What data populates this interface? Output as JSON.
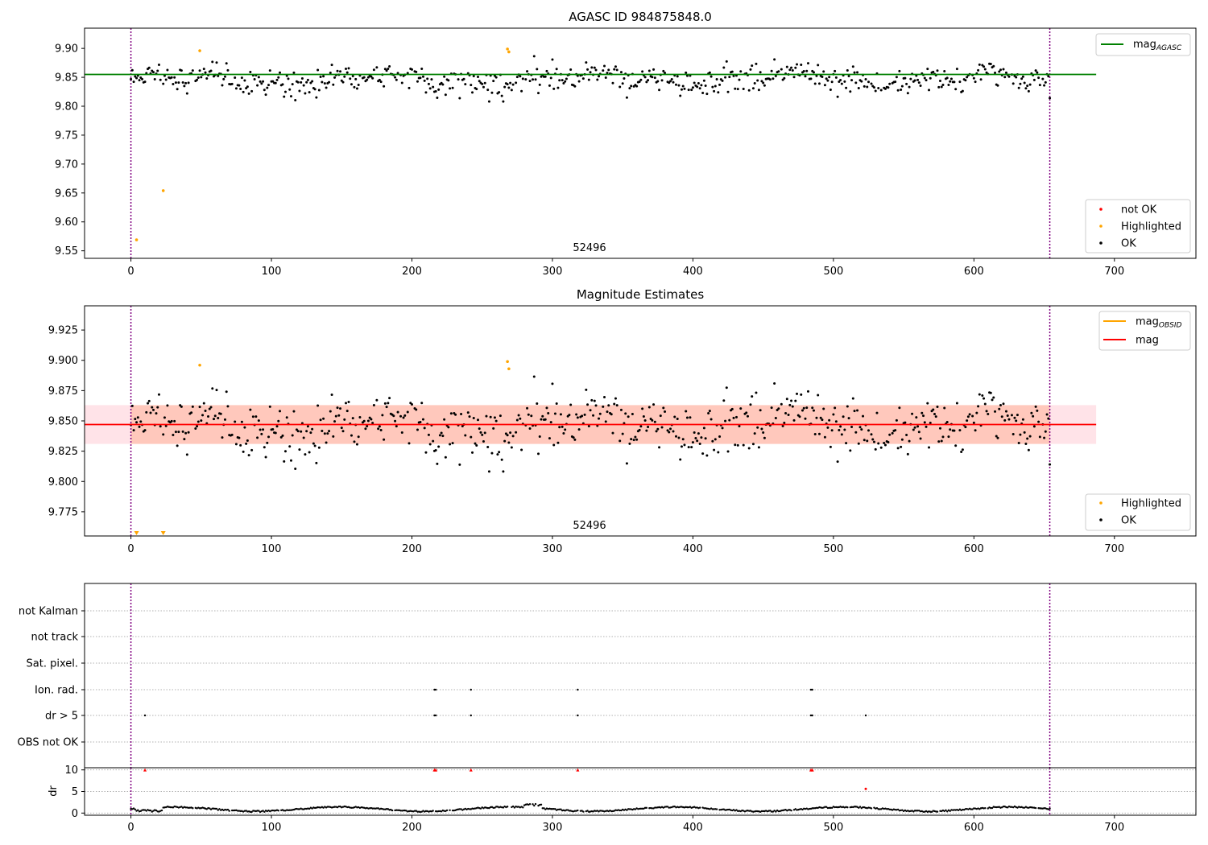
{
  "colors": {
    "ok": "#000000",
    "highlighted": "#ffa500",
    "not_ok": "#ff0000",
    "agasc_line": "#008000",
    "mag_line": "#ff0000",
    "mag_obsid_line": "#ffa500",
    "band_outer": "#ffc0cb",
    "band_inner": "#ffa07a",
    "obs_boundary": "#800080"
  },
  "chart_data": [
    {
      "type": "scatter",
      "title": "AGASC ID 984875848.0",
      "xlim": [
        -33,
        758
      ],
      "ylim": [
        9.537,
        9.935
      ],
      "x_ticks": [
        "0",
        "100",
        "200",
        "300",
        "400",
        "500",
        "600",
        "700"
      ],
      "y_ticks": [
        "9.55",
        "9.60",
        "9.65",
        "9.70",
        "9.75",
        "9.80",
        "9.85",
        "9.90"
      ],
      "y_tick_values": [
        9.55,
        9.6,
        9.65,
        9.7,
        9.75,
        9.8,
        9.85,
        9.9
      ],
      "mag_agasc": 9.855,
      "mag_agasc_range": [
        -33,
        687
      ],
      "obs_boundaries": [
        0,
        654
      ],
      "obsid_label": "52496",
      "legend_lines": [
        {
          "name": "mag",
          "sub": "AGASC"
        }
      ],
      "legend_points": [
        {
          "name": "not OK",
          "color_key": "not_ok"
        },
        {
          "name": "Highlighted",
          "color_key": "highlighted"
        },
        {
          "name": "OK",
          "color_key": "ok"
        }
      ],
      "highlighted_points": [
        [
          4,
          9.569
        ],
        [
          23,
          9.654
        ],
        [
          49,
          9.896
        ],
        [
          268,
          9.899
        ],
        [
          269,
          9.894
        ]
      ],
      "ok_points": "generated: about 650 points, x 0 to 654, y around 9.847 (9.81 to 9.89)"
    },
    {
      "type": "scatter",
      "title": "Magnitude Estimates",
      "xlim": [
        -33,
        758
      ],
      "ylim": [
        9.755,
        9.945
      ],
      "x_ticks": [
        "0",
        "100",
        "200",
        "300",
        "400",
        "500",
        "600",
        "700"
      ],
      "y_ticks": [
        "9.775",
        "9.800",
        "9.825",
        "9.850",
        "9.875",
        "9.900",
        "9.925"
      ],
      "y_tick_values": [
        9.775,
        9.8,
        9.825,
        9.85,
        9.875,
        9.9,
        9.925
      ],
      "mag": 9.847,
      "mag_range": [
        -33,
        687
      ],
      "band_outer": [
        9.831,
        9.863
      ],
      "band_outer_range": [
        -33,
        687
      ],
      "band_inner": [
        9.831,
        9.863
      ],
      "band_inner_range": [
        0,
        654
      ],
      "obs_boundaries": [
        0,
        654
      ],
      "obsid_label": "52496",
      "legend_lines": [
        {
          "name": "mag",
          "sub": "OBSID",
          "color_key": "mag_obsid_line"
        },
        {
          "name": "mag",
          "sub": "",
          "color_key": "mag_line"
        }
      ],
      "legend_points": [
        {
          "name": "Highlighted",
          "color_key": "highlighted"
        },
        {
          "name": "OK",
          "color_key": "ok"
        }
      ],
      "highlighted_points": [
        [
          49,
          9.896
        ],
        [
          268,
          9.899
        ],
        [
          269,
          9.893
        ]
      ],
      "below_range_markers": [
        4,
        23
      ]
    },
    {
      "type": "scatter",
      "xlim": [
        -33,
        758
      ],
      "categories": [
        "not Kalman",
        "not track",
        "Sat. pixel.",
        "Ion. rad.",
        "dr > 5",
        "OBS not OK"
      ],
      "flag_points": {
        "Ion. rad.": [
          216,
          217,
          242,
          318,
          484,
          485
        ],
        "dr > 5": [
          10,
          216,
          217,
          242,
          318,
          484,
          485,
          523
        ]
      },
      "obs_boundaries": [
        0,
        654
      ]
    },
    {
      "type": "scatter",
      "ylabel": "dr",
      "xlim": [
        -33,
        758
      ],
      "ylim": [
        -0.5,
        10.5
      ],
      "x_ticks": [
        "0",
        "100",
        "200",
        "300",
        "400",
        "500",
        "600",
        "700"
      ],
      "y_ticks": [
        "0",
        "5",
        "10"
      ],
      "y_tick_values": [
        0,
        5,
        10
      ],
      "clipped_markers": [
        10,
        216,
        217,
        242,
        318,
        484,
        485
      ],
      "outlier_points": [
        [
          523,
          5.6
        ]
      ],
      "obs_boundaries": [
        0,
        654
      ]
    }
  ]
}
